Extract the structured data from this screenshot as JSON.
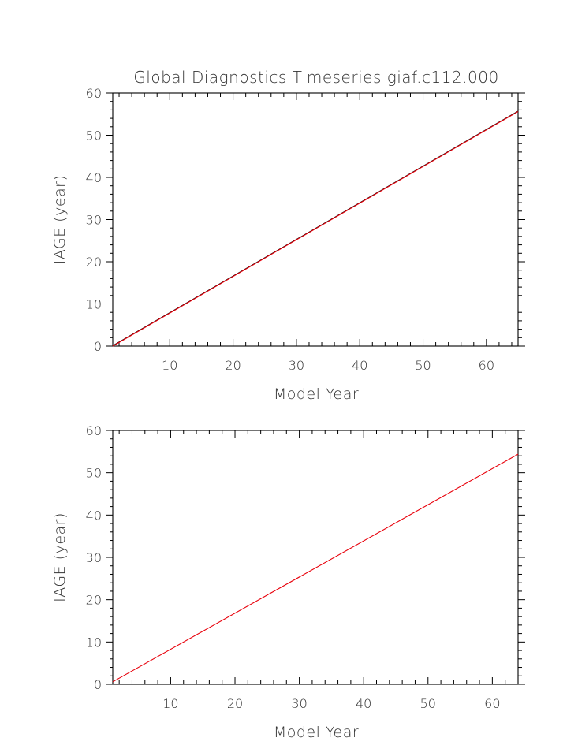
{
  "colors": {
    "background": "#ffffff",
    "axis": "#000000",
    "text": "#333333",
    "series_red": "#e8000b",
    "series_black": "#000000"
  },
  "chart_data": [
    {
      "type": "line",
      "title": "Global Diagnostics Timeseries giaf.c112.000",
      "xlabel": "Model Year",
      "ylabel": "IAGE (year)",
      "xlim": [
        1,
        65
      ],
      "ylim": [
        0,
        60
      ],
      "x_ticks": [
        10,
        20,
        30,
        40,
        50,
        60
      ],
      "y_ticks": [
        0,
        10,
        20,
        30,
        40,
        50,
        60
      ],
      "grid": false,
      "series": [
        {
          "color": "#000000",
          "x": [
            1,
            65
          ],
          "y": [
            0.1,
            55.7
          ]
        },
        {
          "color": "#e8000b",
          "x": [
            1,
            65
          ],
          "y": [
            0.0,
            55.6
          ]
        }
      ]
    },
    {
      "type": "line",
      "title": "",
      "xlabel": "Model Year",
      "ylabel": "IAGE (year)",
      "xlim": [
        1,
        64
      ],
      "ylim": [
        0,
        60
      ],
      "x_ticks": [
        10,
        20,
        30,
        40,
        50,
        60
      ],
      "y_ticks": [
        0,
        10,
        20,
        30,
        40,
        50,
        60
      ],
      "grid": false,
      "series": [
        {
          "color": "#e8000b",
          "x": [
            1,
            64
          ],
          "y": [
            0.6,
            54.4
          ]
        }
      ]
    }
  ]
}
